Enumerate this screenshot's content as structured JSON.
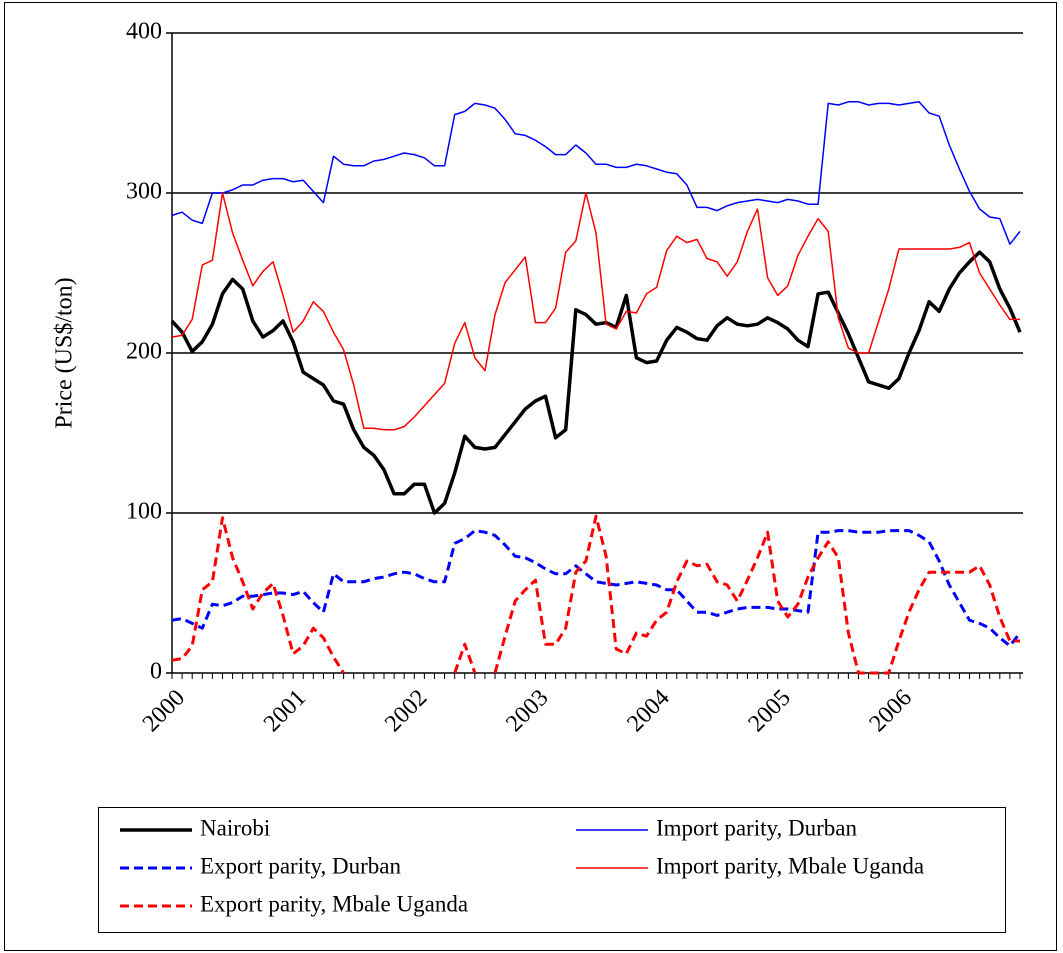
{
  "chart_data": {
    "type": "line",
    "y_label": "Price (US$/ton)",
    "categories": [
      "2000",
      null,
      null,
      null,
      null,
      null,
      null,
      null,
      null,
      null,
      null,
      null,
      "2001",
      null,
      null,
      null,
      null,
      null,
      null,
      null,
      null,
      null,
      null,
      null,
      "2002",
      null,
      null,
      null,
      null,
      null,
      null,
      null,
      null,
      null,
      null,
      null,
      "2003",
      null,
      null,
      null,
      null,
      null,
      null,
      null,
      null,
      null,
      null,
      null,
      "2004",
      null,
      null,
      null,
      null,
      null,
      null,
      null,
      null,
      null,
      null,
      null,
      "2005",
      null,
      null,
      null,
      null,
      null,
      null,
      null,
      null,
      null,
      null,
      null,
      "2006",
      null,
      null,
      null,
      null,
      null,
      null,
      null,
      null,
      null,
      null,
      null,
      null
    ],
    "ylim": [
      0,
      400
    ],
    "yticks": [
      0,
      100,
      200,
      300,
      400
    ],
    "grid": true,
    "legend": "bottom",
    "series": [
      {
        "name": "Nairobi",
        "color": "#000000",
        "line_style": "thick",
        "values": [
          220,
          213,
          201,
          207,
          218,
          237,
          246,
          240,
          220,
          210,
          214,
          220,
          207,
          188,
          184,
          180,
          170,
          168,
          152,
          141,
          136,
          127,
          112,
          112,
          118,
          118,
          100,
          106,
          125,
          148,
          141,
          140,
          141,
          149,
          157,
          165,
          170,
          173,
          147,
          152,
          227,
          224,
          218,
          219,
          216,
          236,
          197,
          194,
          195,
          208,
          216,
          213,
          209,
          208,
          217,
          222,
          218,
          217,
          218,
          222,
          219,
          215,
          208,
          204,
          237,
          238,
          225,
          212,
          197,
          182,
          180,
          178,
          184,
          200,
          214,
          232,
          226,
          240,
          250,
          257,
          263,
          257,
          240,
          228,
          213
        ]
      },
      {
        "name": "Import parity, Durban",
        "color": "#0000ff",
        "line_style": "solid",
        "values": [
          286,
          288,
          283,
          281,
          300,
          300,
          302,
          305,
          305,
          308,
          309,
          309,
          307,
          308,
          301,
          294,
          323,
          318,
          317,
          317,
          320,
          321,
          323,
          325,
          324,
          322,
          317,
          317,
          349,
          351,
          356,
          355,
          353,
          346,
          337,
          336,
          333,
          329,
          324,
          324,
          330,
          325,
          318,
          318,
          316,
          316,
          318,
          317,
          315,
          313,
          312,
          305,
          291,
          291,
          289,
          292,
          294,
          295,
          296,
          295,
          294,
          296,
          295,
          293,
          293,
          356,
          355,
          357,
          357,
          355,
          356,
          356,
          355,
          356,
          357,
          350,
          348,
          330,
          315,
          301,
          290,
          285,
          284,
          268,
          276
        ]
      },
      {
        "name": "Export parity, Durban",
        "color": "#0000ff",
        "line_style": "dashed",
        "values": [
          33,
          34,
          31,
          28,
          43,
          42,
          44,
          48,
          48,
          49,
          50,
          50,
          49,
          51,
          44,
          38,
          62,
          57,
          57,
          57,
          59,
          60,
          62,
          63,
          62,
          59,
          57,
          57,
          81,
          84,
          89,
          88,
          86,
          80,
          73,
          72,
          69,
          65,
          62,
          62,
          67,
          62,
          57,
          56,
          55,
          56,
          57,
          56,
          55,
          52,
          52,
          45,
          38,
          38,
          36,
          38,
          40,
          41,
          41,
          41,
          40,
          40,
          39,
          38,
          88,
          88,
          89,
          89,
          88,
          88,
          88,
          89,
          89,
          89,
          86,
          82,
          70,
          55,
          44,
          33,
          31,
          28,
          22,
          17,
          25
        ]
      },
      {
        "name": "Import parity, Mbale Uganda",
        "color": "#ff0000",
        "line_style": "solid",
        "values": [
          210,
          211,
          221,
          255,
          258,
          300,
          275,
          258,
          242,
          251,
          257,
          236,
          213,
          220,
          232,
          226,
          213,
          202,
          180,
          153,
          153,
          152,
          152,
          154,
          160,
          167,
          174,
          181,
          206,
          219,
          197,
          189,
          224,
          244,
          252,
          260,
          219,
          219,
          228,
          263,
          270,
          300,
          275,
          218,
          215,
          226,
          225,
          237,
          241,
          264,
          273,
          269,
          271,
          259,
          257,
          248,
          257,
          276,
          290,
          247,
          236,
          242,
          261,
          273,
          284,
          276,
          222,
          203,
          200,
          200,
          220,
          240,
          265,
          265,
          265,
          265,
          265,
          265,
          266,
          269,
          250,
          240,
          230,
          221,
          221
        ]
      },
      {
        "name": "Export parity, Mbale Uganda",
        "color": "#ff0000",
        "line_style": "dashed",
        "values": [
          8,
          9,
          17,
          52,
          57,
          97,
          72,
          57,
          40,
          50,
          56,
          36,
          12,
          17,
          28,
          22,
          10,
          0,
          null,
          null,
          null,
          null,
          null,
          null,
          null,
          null,
          null,
          null,
          0,
          18,
          0,
          null,
          0,
          23,
          45,
          52,
          58,
          18,
          18,
          28,
          63,
          70,
          98,
          73,
          15,
          12,
          25,
          23,
          33,
          38,
          57,
          70,
          67,
          68,
          57,
          55,
          45,
          58,
          72,
          88,
          45,
          35,
          43,
          60,
          72,
          82,
          72,
          25,
          0,
          0,
          0,
          0,
          20,
          38,
          52,
          63,
          63,
          63,
          63,
          63,
          67,
          55,
          35,
          20,
          20
        ]
      }
    ]
  }
}
